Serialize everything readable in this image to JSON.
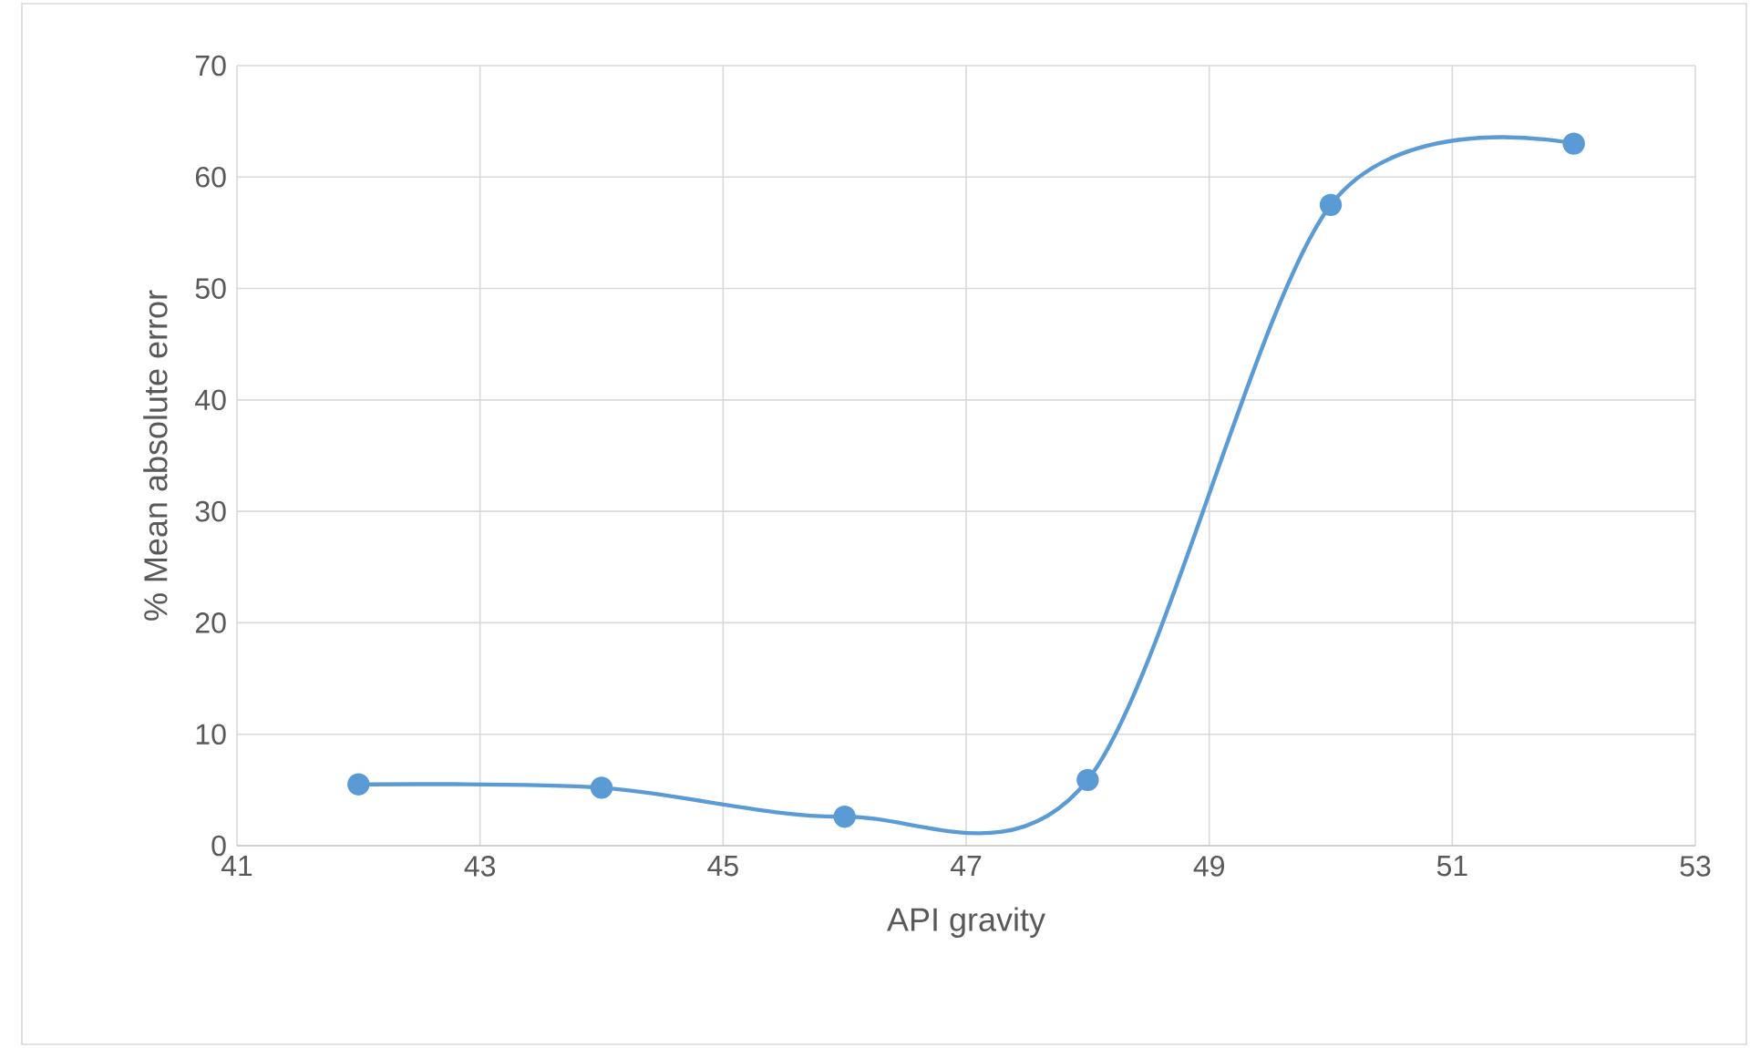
{
  "chart_data": {
    "type": "line",
    "xlabel": "API gravity",
    "ylabel": "% Mean absolute error",
    "x": [
      42,
      44,
      46,
      48,
      50,
      52
    ],
    "series": [
      {
        "color": "#5b9bd5",
        "values": [
          5.5,
          5.2,
          2.6,
          5.9,
          57.5,
          63
        ]
      }
    ],
    "xlim": [
      41,
      53
    ],
    "xticks": [
      41,
      43,
      45,
      47,
      49,
      51,
      53
    ],
    "ylim": [
      0,
      70
    ],
    "yticks": [
      0,
      10,
      20,
      30,
      40,
      50,
      60,
      70
    ],
    "grid": true,
    "marker": "circle",
    "line_style": "solid"
  }
}
